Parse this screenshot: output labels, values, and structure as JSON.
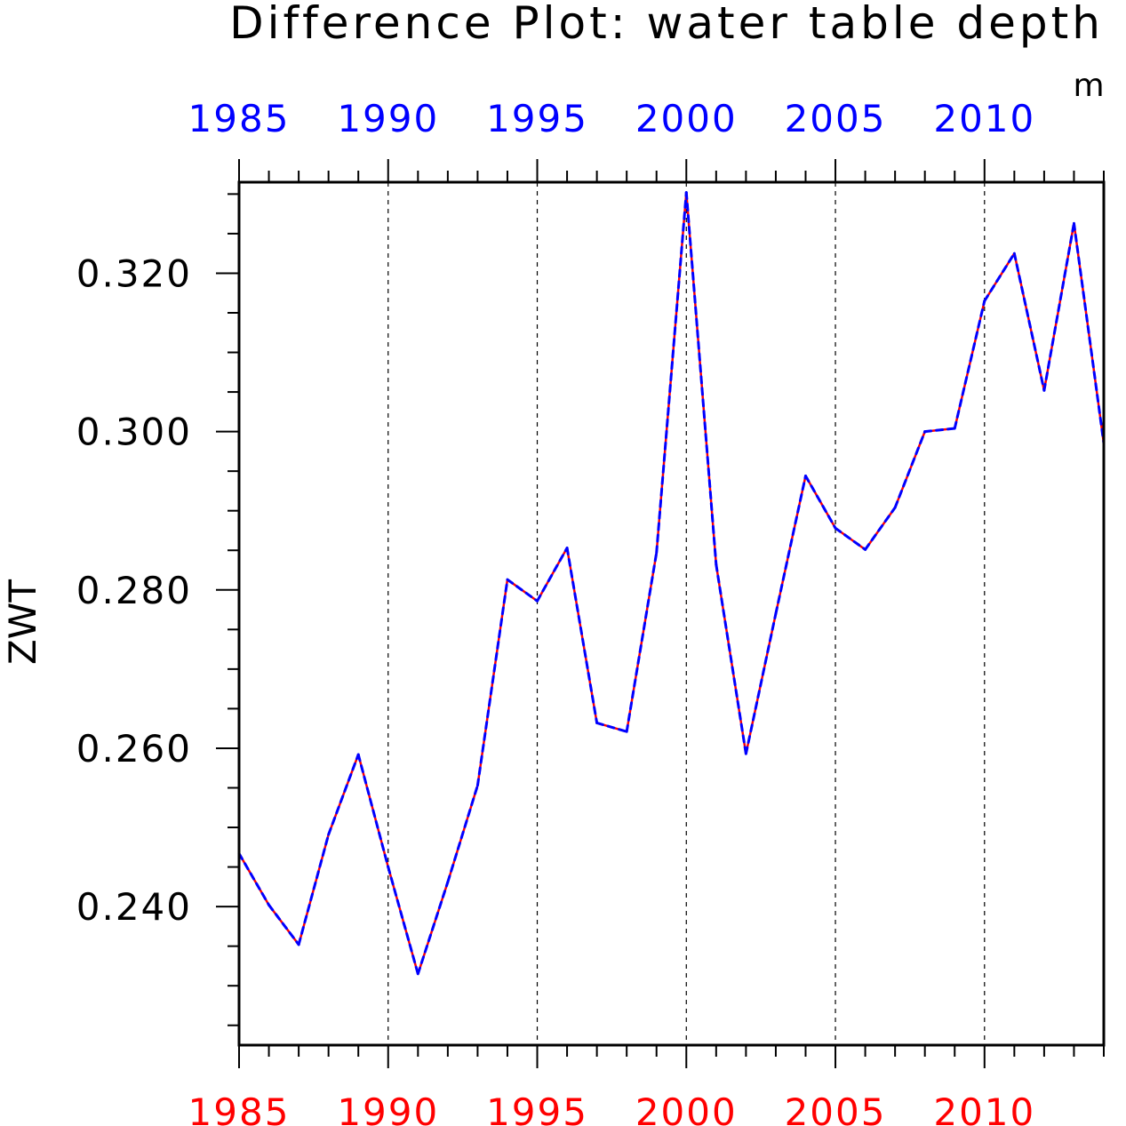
{
  "chart_data": {
    "type": "line",
    "title": "Difference Plot: water table depth",
    "units": "m",
    "ylabel": "ZWT",
    "xlabel": "",
    "xlim": [
      1985,
      2014
    ],
    "ylim": [
      0.2225,
      0.3315
    ],
    "x_ticks": [
      1985,
      1990,
      1995,
      2000,
      2005,
      2010
    ],
    "x_tick_labels": [
      "1985",
      "1990",
      "1995",
      "2000",
      "2005",
      "2010"
    ],
    "y_ticks": [
      0.24,
      0.26,
      0.28,
      0.3,
      0.32
    ],
    "y_tick_labels": [
      "0.240",
      "0.260",
      "0.280",
      "0.300",
      "0.320"
    ],
    "x_vertical_gridlines": true,
    "colors": {
      "top_axis_labels": "#0000ff",
      "bottom_axis_labels": "#ff0000",
      "series_a": "#ff0000",
      "series_b": "#0000ff"
    },
    "x": [
      1985,
      1986,
      1987,
      1988,
      1989,
      1990,
      1991,
      1992,
      1993,
      1994,
      1995,
      1996,
      1997,
      1998,
      1999,
      2000,
      2001,
      2002,
      2003,
      2004,
      2005,
      2006,
      2007,
      2008,
      2009,
      2010,
      2011,
      2012,
      2013,
      2014
    ],
    "series": [
      {
        "style": "solid",
        "color": "#ff0000",
        "values": [
          0.2467,
          0.2402,
          0.2352,
          0.2491,
          0.2592,
          0.245,
          0.2315,
          0.2431,
          0.2553,
          0.2813,
          0.2786,
          0.2853,
          0.2632,
          0.2621,
          0.2847,
          0.3302,
          0.2832,
          0.2593,
          0.277,
          0.2944,
          0.2878,
          0.2851,
          0.2904,
          0.3,
          0.3004,
          0.3165,
          0.3225,
          0.3052,
          0.3263,
          0.2985
        ]
      },
      {
        "style": "dashed",
        "color": "#0000ff",
        "values": [
          0.2467,
          0.2402,
          0.2352,
          0.2491,
          0.2592,
          0.245,
          0.2315,
          0.2431,
          0.2553,
          0.2813,
          0.2786,
          0.2853,
          0.2632,
          0.2621,
          0.2847,
          0.3302,
          0.2832,
          0.2593,
          0.277,
          0.2944,
          0.2878,
          0.2851,
          0.2904,
          0.3,
          0.3004,
          0.3165,
          0.3225,
          0.3052,
          0.3263,
          0.2985
        ]
      }
    ]
  }
}
